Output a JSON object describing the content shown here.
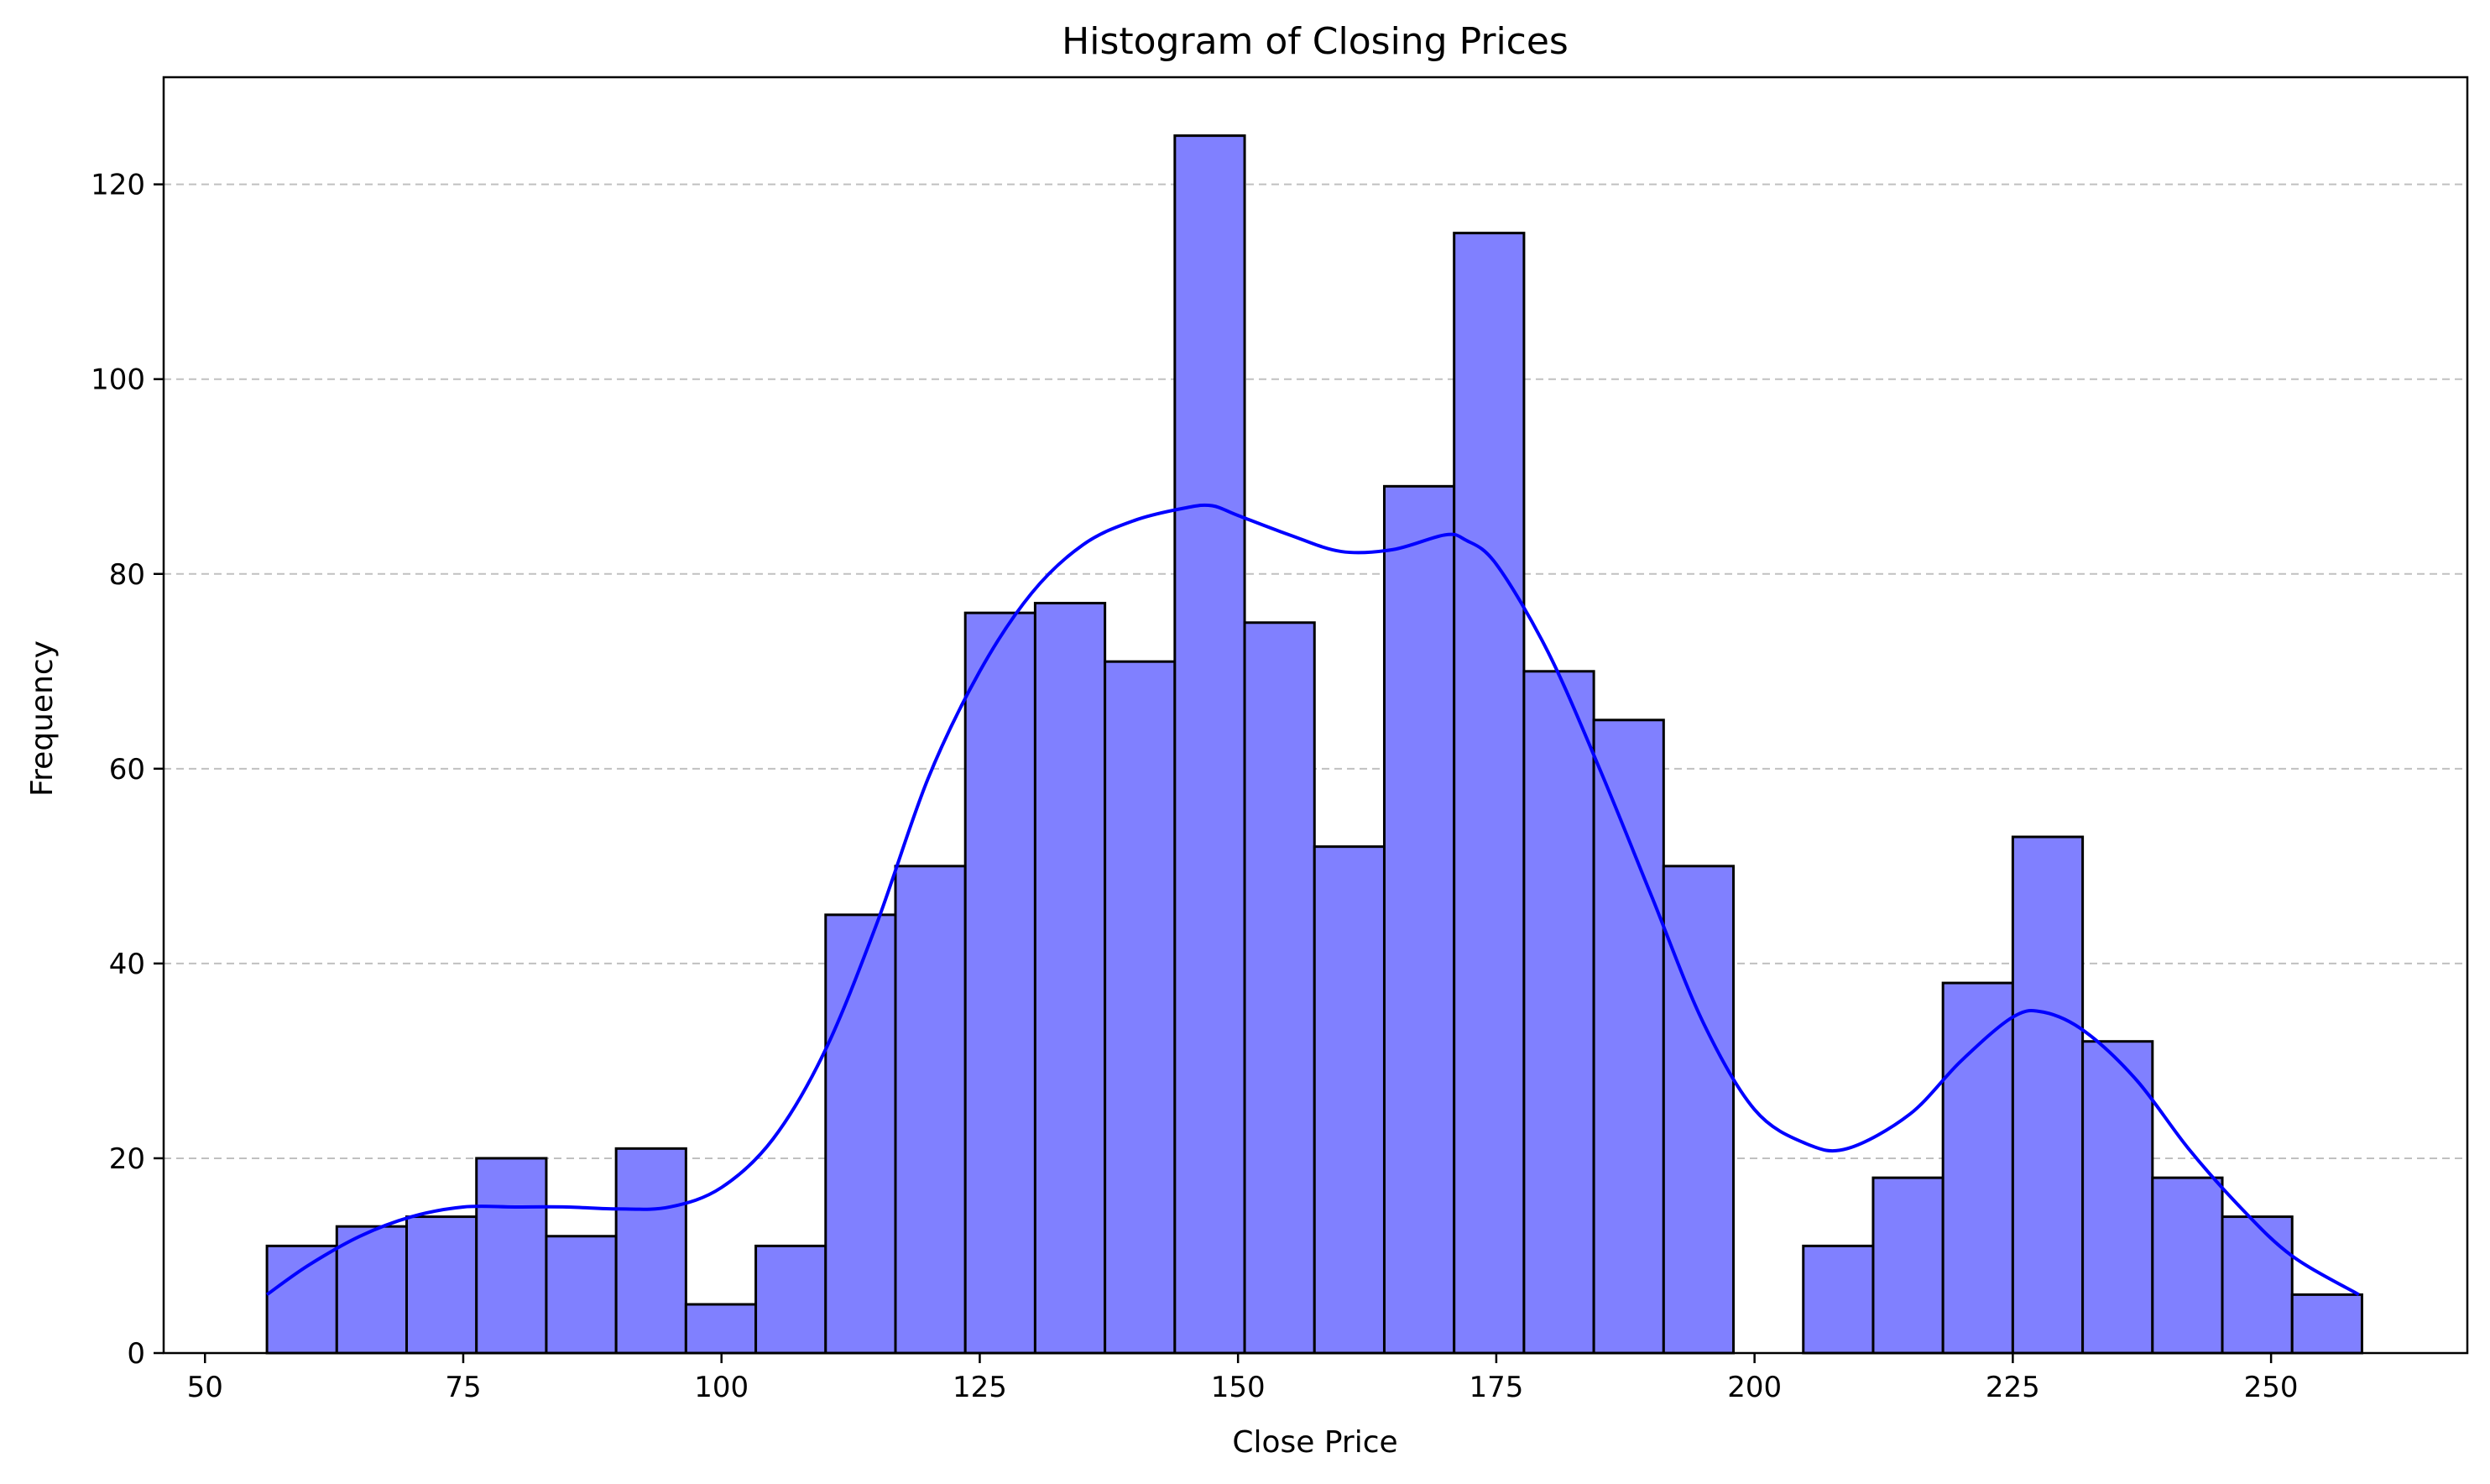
{
  "chart_data": {
    "type": "bar",
    "title": "Histogram of Closing Prices",
    "xlabel": "Close Price",
    "ylabel": "Frequency",
    "xlim": [
      46,
      269
    ],
    "ylim": [
      0,
      131
    ],
    "grid": {
      "y": true,
      "style": "dashed"
    },
    "x_ticks": [
      50,
      75,
      100,
      125,
      150,
      175,
      200,
      225,
      250
    ],
    "y_ticks": [
      0,
      20,
      40,
      60,
      80,
      100,
      120
    ],
    "bin_start": 56.0,
    "bin_width": 6.76,
    "values": [
      11,
      13,
      14,
      20,
      12,
      21,
      5,
      11,
      45,
      50,
      76,
      77,
      71,
      125,
      75,
      52,
      89,
      115,
      70,
      65,
      50,
      0,
      11,
      18,
      38,
      53,
      32,
      18,
      14,
      6
    ],
    "kde": {
      "x": [
        56,
        60,
        65,
        70,
        75,
        80,
        85,
        90,
        95,
        100,
        105,
        110,
        115,
        120,
        125,
        130,
        135,
        140,
        145,
        147.5,
        150,
        155,
        160,
        165,
        170,
        172,
        175,
        180,
        185,
        190,
        195,
        200,
        205,
        209,
        215,
        220,
        225,
        228,
        232,
        237,
        242,
        247,
        252,
        258.5
      ],
      "y": [
        6,
        9,
        12,
        14,
        15,
        15,
        15,
        14.8,
        15,
        17,
        22,
        31,
        44,
        59,
        70,
        78,
        83,
        85.5,
        86.8,
        87,
        86,
        84,
        82.3,
        82.5,
        84,
        83.5,
        81,
        72,
        60,
        47,
        34,
        25,
        21.5,
        21,
        24.5,
        30,
        34.5,
        35,
        33,
        28,
        21,
        15,
        10,
        6
      ]
    },
    "colors": {
      "bar_fill": "#8080ff",
      "bar_edge": "#000000",
      "kde_line": "#0000ff",
      "grid": "#c0c0c0"
    }
  }
}
